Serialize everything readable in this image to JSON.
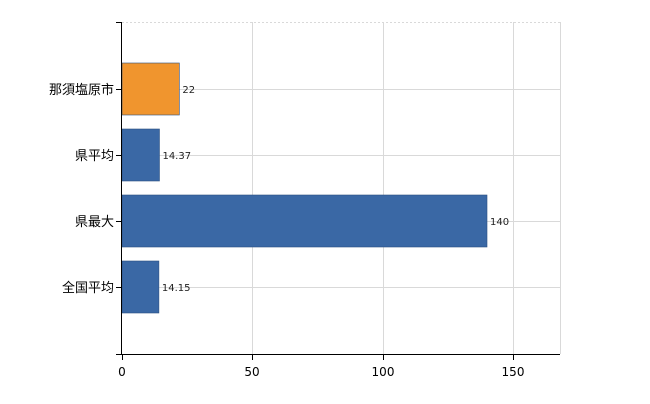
{
  "chart_data": {
    "type": "bar",
    "orientation": "horizontal",
    "categories": [
      "那須塩原市",
      "県平均",
      "県最大",
      "全国平均"
    ],
    "values": [
      22,
      14.37,
      140,
      14.15
    ],
    "data_labels": [
      "22",
      "14.37",
      "140",
      "14.15"
    ],
    "bar_colors": [
      "#F0952E",
      "#3A68A5",
      "#3A68A5",
      "#3A68A5"
    ],
    "xlim": [
      0,
      168
    ],
    "x_ticks": [
      0,
      50,
      100,
      150
    ],
    "x_tick_labels": [
      "0",
      "50",
      "100",
      "150"
    ],
    "grid": true,
    "grid_color": "#d9d9d9",
    "title": "",
    "xlabel": "",
    "ylabel": "",
    "legend": "none"
  }
}
